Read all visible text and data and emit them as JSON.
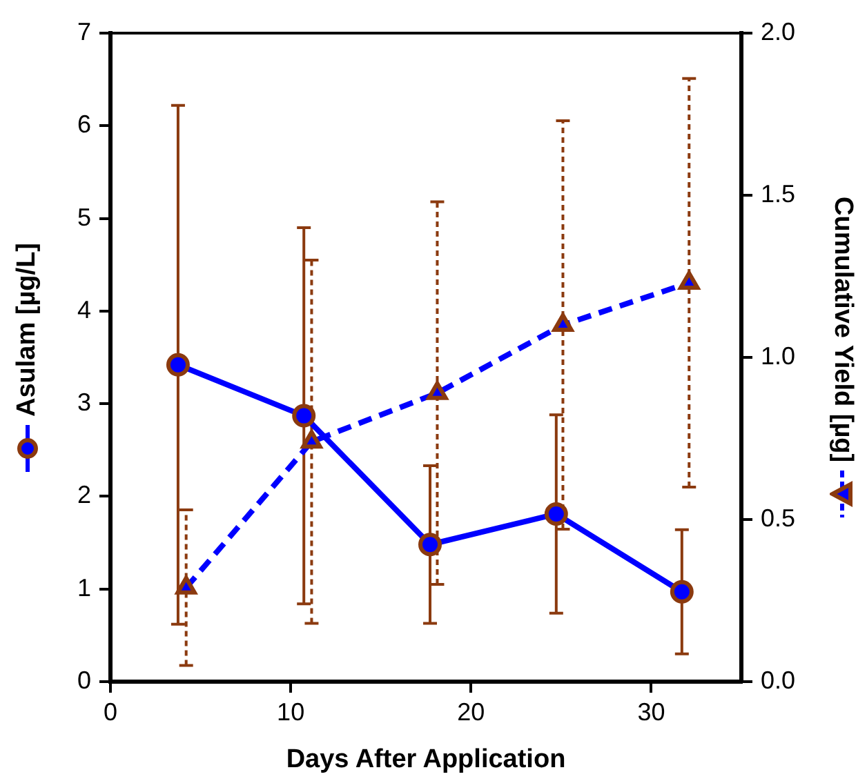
{
  "chart_data": {
    "type": "line",
    "xlabel": "Days After Application",
    "ylabel": "Asulam [µg/L]",
    "y2label": "Cumulative Yield [µg]",
    "xlim": [
      0,
      35
    ],
    "xticks": [
      0,
      10,
      20,
      30
    ],
    "ylim": [
      0,
      7
    ],
    "yticks": [
      0,
      1,
      2,
      3,
      4,
      5,
      6,
      7
    ],
    "y2lim": [
      0,
      2
    ],
    "y2ticks": [
      {
        "value": 0,
        "label": "0.0"
      },
      0.5,
      {
        "value": 1,
        "label": "1.0"
      },
      1.5,
      {
        "value": 2,
        "label": "2.0"
      }
    ],
    "grid": false,
    "legend": false,
    "series": [
      {
        "color": "#0000ff",
        "marker": "circle",
        "line_style": "solid",
        "axis": "y",
        "x": [
          3.75,
          10.73,
          17.73,
          24.73,
          31.7
        ],
        "values": [
          3.42,
          2.87,
          1.48,
          1.81,
          0.97
        ],
        "errors": [
          2.8,
          2.03,
          0.85,
          1.07,
          0.67
        ]
      },
      {
        "color": "#0000ff",
        "marker": "triangle",
        "line_style": "dashed",
        "axis": "y2",
        "x": [
          4.2,
          11.16,
          18.13,
          25.1,
          32.1
        ],
        "values": [
          0.29,
          0.74,
          0.89,
          1.1,
          1.23
        ],
        "errors": [
          0.24,
          0.56,
          0.59,
          0.63,
          0.63
        ]
      }
    ]
  }
}
